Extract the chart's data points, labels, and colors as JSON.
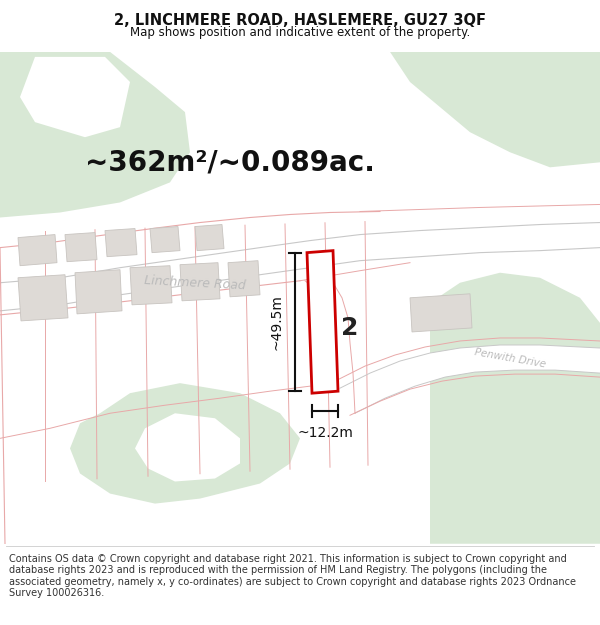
{
  "title": "2, LINCHMERE ROAD, HASLEMERE, GU27 3QF",
  "subtitle": "Map shows position and indicative extent of the property.",
  "footer": "Contains OS data © Crown copyright and database right 2021. This information is subject to Crown copyright and database rights 2023 and is reproduced with the permission of HM Land Registry. The polygons (including the associated geometry, namely x, y co-ordinates) are subject to Crown copyright and database rights 2023 Ordnance Survey 100026316.",
  "area_label": "~362m²/~0.089ac.",
  "dim_height": "~49.5m",
  "dim_width": "~12.2m",
  "road_label_1": "Linchmere Road",
  "road_label_2": "Penwith Drive",
  "plot_number": "2",
  "white": "#ffffff",
  "green_fill": "#d8e8d5",
  "road_line_color": "#e8a8a8",
  "road_gray_color": "#c8c8c8",
  "building_fill": "#dedad6",
  "building_outline": "#c8c4c0",
  "plot_outline_color": "#cc0000",
  "dim_line_color": "#111111",
  "title_color": "#111111",
  "footer_color": "#333333",
  "area_label_color": "#111111",
  "road_text_color": "#aaaaaa",
  "title_fontsize": 10.5,
  "subtitle_fontsize": 8.5,
  "footer_fontsize": 7.0,
  "area_fontsize": 20,
  "dim_fontsize": 10,
  "road_fontsize": 9,
  "plot_num_fontsize": 18
}
